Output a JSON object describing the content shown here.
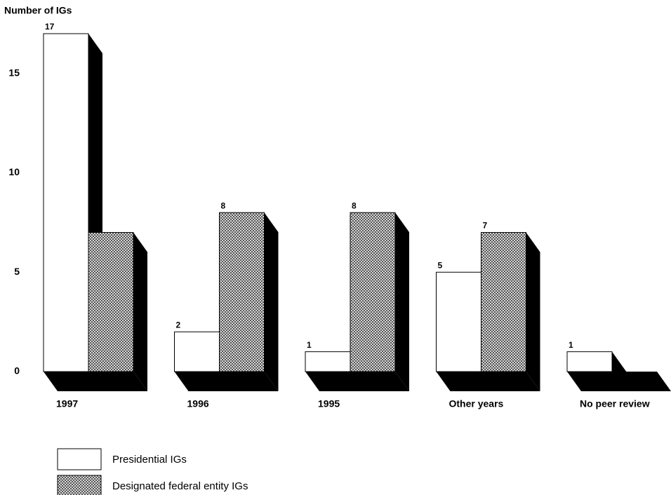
{
  "chart_data": {
    "type": "bar3d",
    "title": "Number of IGs",
    "categories": [
      "1997",
      "1996",
      "1995",
      "Other years",
      "No peer review"
    ],
    "series": [
      {
        "name": "Presidential IGs",
        "color": "#ffffff",
        "values": [
          17,
          2,
          1,
          5,
          1
        ]
      },
      {
        "name": "Designated federal entity IGs",
        "color": "hatch",
        "values": [
          7,
          8,
          8,
          7,
          0
        ]
      }
    ],
    "ylim": [
      0,
      17
    ],
    "yticks": [
      0,
      5,
      10,
      15
    ],
    "grid": false
  }
}
